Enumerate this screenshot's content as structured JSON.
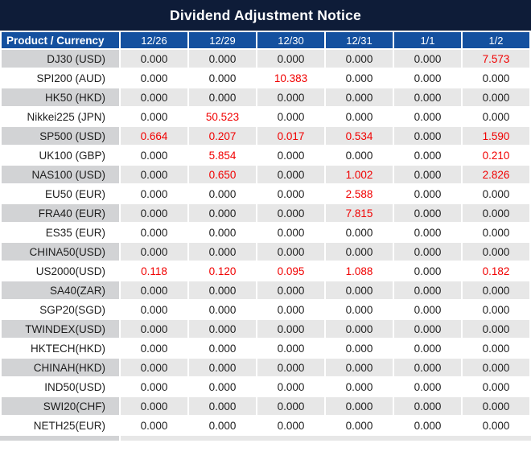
{
  "title": "Dividend Adjustment Notice",
  "colors": {
    "title_bg": "#0e1c38",
    "header_bg": "#14509f",
    "stripe_product": "#d2d3d5",
    "stripe_value": "#e7e7e7",
    "negative_value_red": "#f10000",
    "value_text": "#1e1e1e"
  },
  "table": {
    "product_header": "Product / Currency",
    "date_headers": [
      "12/26",
      "12/29",
      "12/30",
      "12/31",
      "1/1",
      "1/2"
    ],
    "rows": [
      {
        "product": "DJ30 (USD)",
        "values": [
          "0.000",
          "0.000",
          "0.000",
          "0.000",
          "0.000",
          "7.573"
        ],
        "red": [
          false,
          false,
          false,
          false,
          false,
          true
        ]
      },
      {
        "product": "SPI200 (AUD)",
        "values": [
          "0.000",
          "0.000",
          "10.383",
          "0.000",
          "0.000",
          "0.000"
        ],
        "red": [
          false,
          false,
          true,
          false,
          false,
          false
        ]
      },
      {
        "product": "HK50 (HKD)",
        "values": [
          "0.000",
          "0.000",
          "0.000",
          "0.000",
          "0.000",
          "0.000"
        ],
        "red": [
          false,
          false,
          false,
          false,
          false,
          false
        ]
      },
      {
        "product": "Nikkei225 (JPN)",
        "values": [
          "0.000",
          "50.523",
          "0.000",
          "0.000",
          "0.000",
          "0.000"
        ],
        "red": [
          false,
          true,
          false,
          false,
          false,
          false
        ]
      },
      {
        "product": "SP500 (USD)",
        "values": [
          "0.664",
          "0.207",
          "0.017",
          "0.534",
          "0.000",
          "1.590"
        ],
        "red": [
          true,
          true,
          true,
          true,
          false,
          true
        ]
      },
      {
        "product": "UK100 (GBP)",
        "values": [
          "0.000",
          "5.854",
          "0.000",
          "0.000",
          "0.000",
          "0.210"
        ],
        "red": [
          false,
          true,
          false,
          false,
          false,
          true
        ]
      },
      {
        "product": "NAS100 (USD)",
        "values": [
          "0.000",
          "0.650",
          "0.000",
          "1.002",
          "0.000",
          "2.826"
        ],
        "red": [
          false,
          true,
          false,
          true,
          false,
          true
        ]
      },
      {
        "product": "EU50 (EUR)",
        "values": [
          "0.000",
          "0.000",
          "0.000",
          "2.588",
          "0.000",
          "0.000"
        ],
        "red": [
          false,
          false,
          false,
          true,
          false,
          false
        ]
      },
      {
        "product": "FRA40 (EUR)",
        "values": [
          "0.000",
          "0.000",
          "0.000",
          "7.815",
          "0.000",
          "0.000"
        ],
        "red": [
          false,
          false,
          false,
          true,
          false,
          false
        ]
      },
      {
        "product": "ES35 (EUR)",
        "values": [
          "0.000",
          "0.000",
          "0.000",
          "0.000",
          "0.000",
          "0.000"
        ],
        "red": [
          false,
          false,
          false,
          false,
          false,
          false
        ]
      },
      {
        "product": "CHINA50(USD)",
        "values": [
          "0.000",
          "0.000",
          "0.000",
          "0.000",
          "0.000",
          "0.000"
        ],
        "red": [
          false,
          false,
          false,
          false,
          false,
          false
        ]
      },
      {
        "product": "US2000(USD)",
        "values": [
          "0.118",
          "0.120",
          "0.095",
          "1.088",
          "0.000",
          "0.182"
        ],
        "red": [
          true,
          true,
          true,
          true,
          false,
          true
        ]
      },
      {
        "product": "SA40(ZAR)",
        "values": [
          "0.000",
          "0.000",
          "0.000",
          "0.000",
          "0.000",
          "0.000"
        ],
        "red": [
          false,
          false,
          false,
          false,
          false,
          false
        ]
      },
      {
        "product": "SGP20(SGD)",
        "values": [
          "0.000",
          "0.000",
          "0.000",
          "0.000",
          "0.000",
          "0.000"
        ],
        "red": [
          false,
          false,
          false,
          false,
          false,
          false
        ]
      },
      {
        "product": "TWINDEX(USD)",
        "values": [
          "0.000",
          "0.000",
          "0.000",
          "0.000",
          "0.000",
          "0.000"
        ],
        "red": [
          false,
          false,
          false,
          false,
          false,
          false
        ]
      },
      {
        "product": "HKTECH(HKD)",
        "values": [
          "0.000",
          "0.000",
          "0.000",
          "0.000",
          "0.000",
          "0.000"
        ],
        "red": [
          false,
          false,
          false,
          false,
          false,
          false
        ]
      },
      {
        "product": "CHINAH(HKD)",
        "values": [
          "0.000",
          "0.000",
          "0.000",
          "0.000",
          "0.000",
          "0.000"
        ],
        "red": [
          false,
          false,
          false,
          false,
          false,
          false
        ]
      },
      {
        "product": "IND50(USD)",
        "values": [
          "0.000",
          "0.000",
          "0.000",
          "0.000",
          "0.000",
          "0.000"
        ],
        "red": [
          false,
          false,
          false,
          false,
          false,
          false
        ]
      },
      {
        "product": "SWI20(CHF)",
        "values": [
          "0.000",
          "0.000",
          "0.000",
          "0.000",
          "0.000",
          "0.000"
        ],
        "red": [
          false,
          false,
          false,
          false,
          false,
          false
        ]
      },
      {
        "product": "NETH25(EUR)",
        "values": [
          "0.000",
          "0.000",
          "0.000",
          "0.000",
          "0.000",
          "0.000"
        ],
        "red": [
          false,
          false,
          false,
          false,
          false,
          false
        ]
      }
    ]
  }
}
